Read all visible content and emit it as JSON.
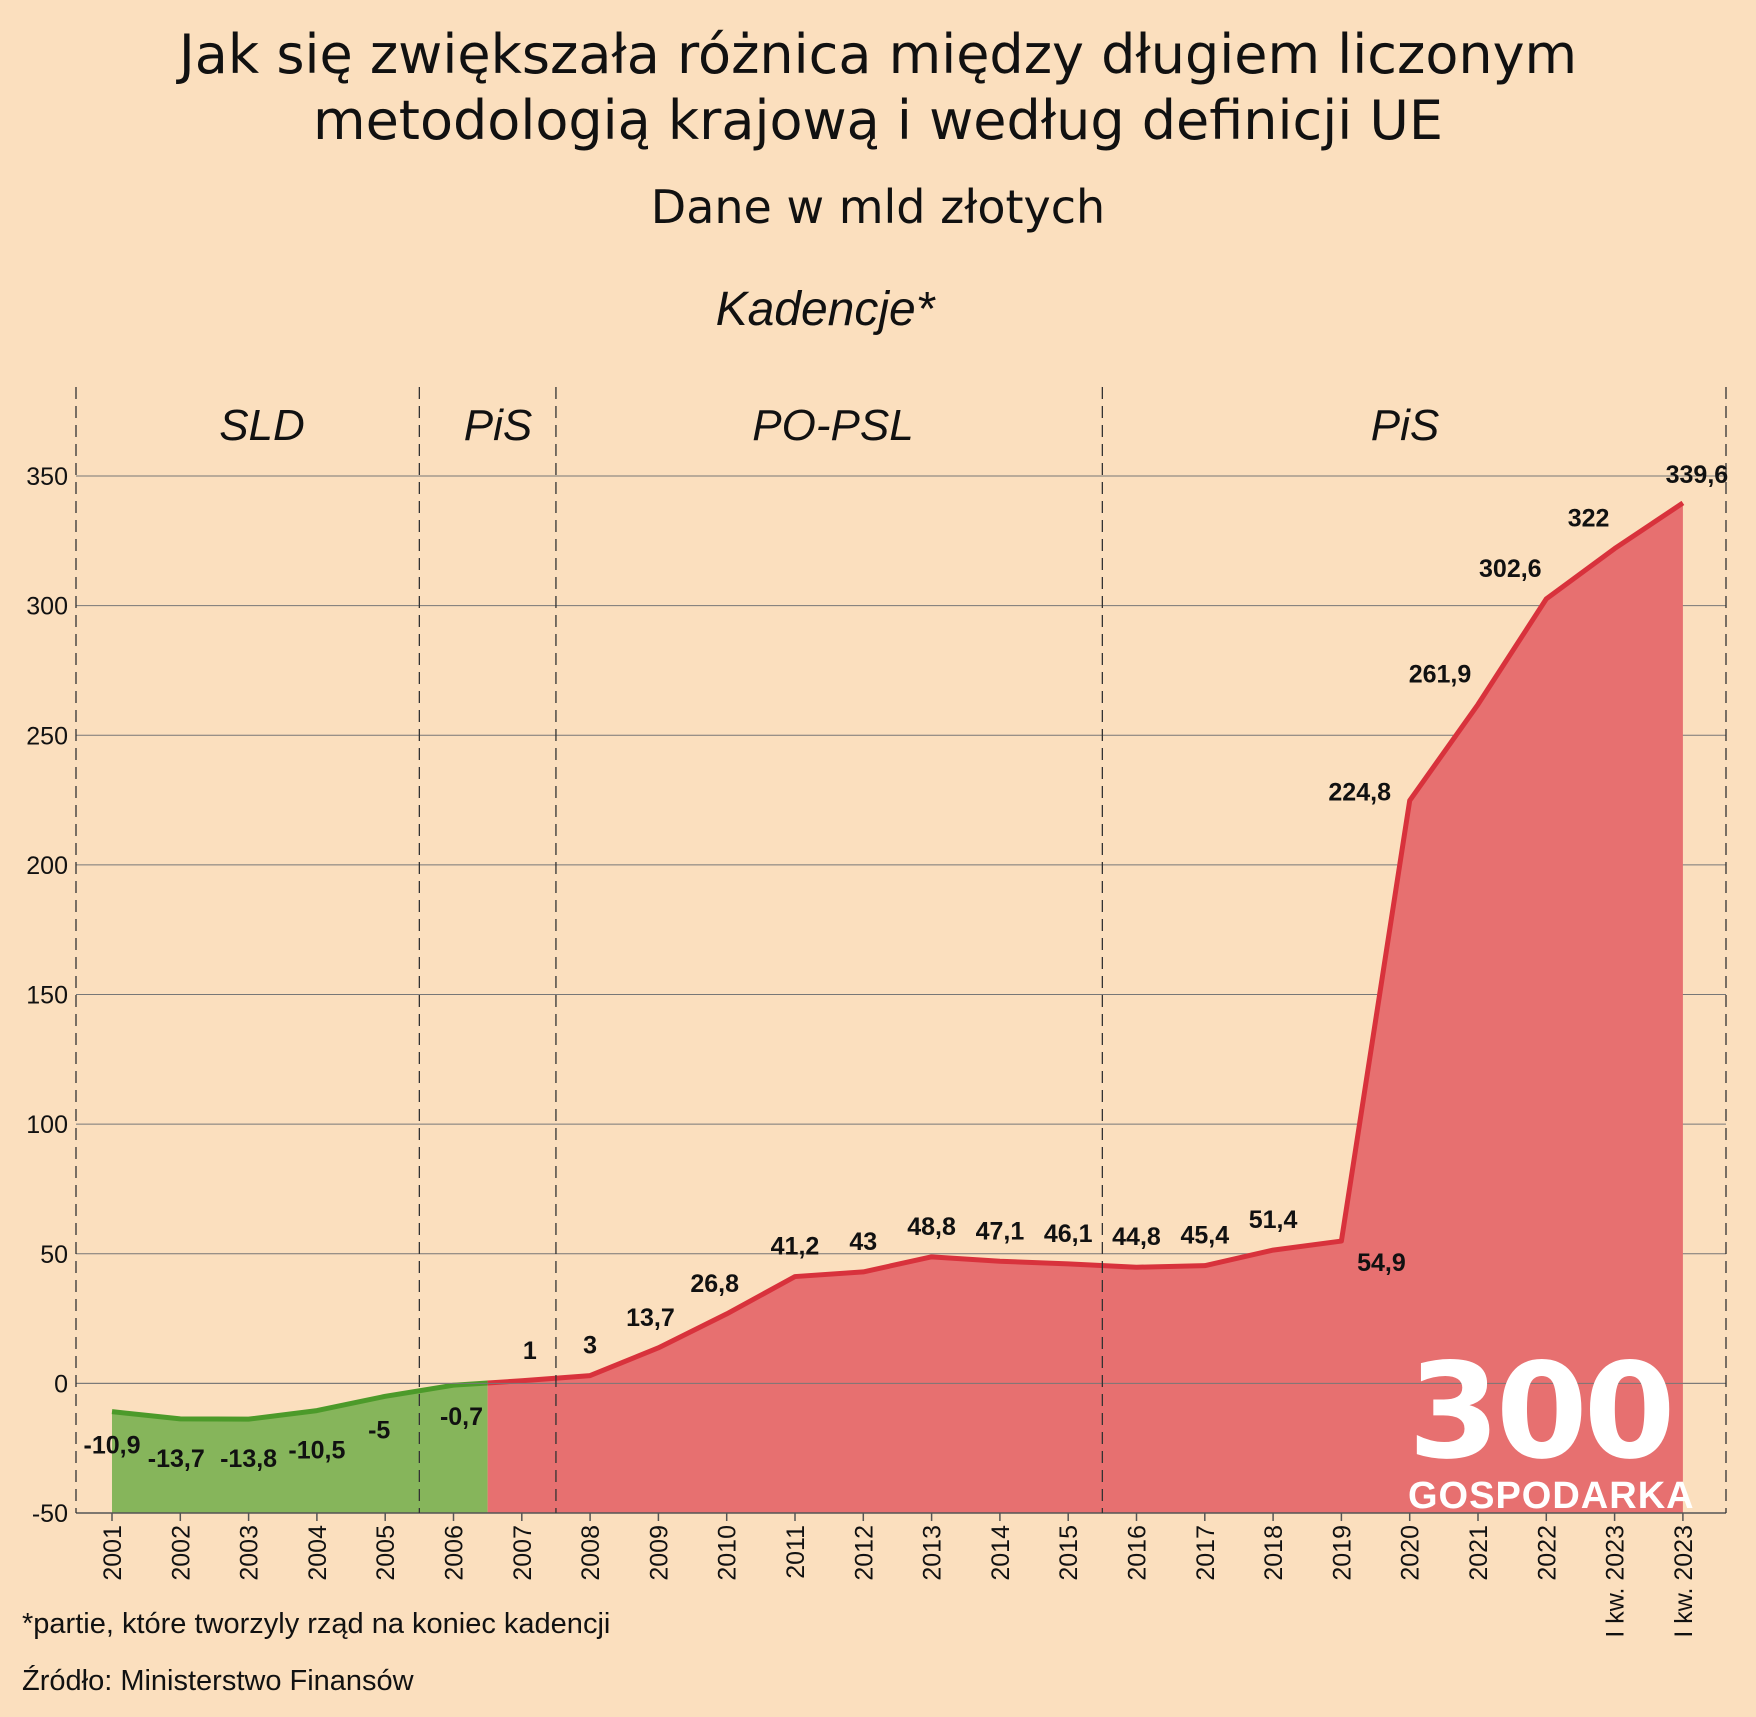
{
  "title_lines": [
    "Jak się zwiększała różnica między długiem liczonym",
    "metodologią krajową i według definicji UE"
  ],
  "subtitle": "Dane w mld złotych",
  "terms_title": "Kadencje*",
  "footnote": "*partie, które tworzyly rząd na koniec kadencji",
  "source": "Źródło: Ministerstwo Finansów",
  "logo": {
    "number": "300",
    "word": "GOSPODARKA"
  },
  "colors": {
    "background": "#fbdfbe",
    "negative_fill": "#86b55b",
    "negative_line": "#4c9a2a",
    "positive_fill": "#e77070",
    "positive_line": "#d8323c",
    "grid": "#777777"
  },
  "chart_data": {
    "type": "area",
    "title": "Jak się zwiększała różnica między długiem liczonym metodologią krajową i według definicji UE",
    "subtitle": "Dane w mld złotych",
    "x": [
      "2001",
      "2002",
      "2003",
      "2004",
      "2005",
      "2006",
      "2007",
      "2008",
      "2009",
      "2010",
      "2011",
      "2012",
      "2013",
      "2014",
      "2015",
      "2016",
      "2017",
      "2018",
      "2019",
      "2020",
      "2021",
      "2022",
      "I kw. 2023",
      "I kw. 2023"
    ],
    "values": [
      -10.9,
      -13.7,
      -13.8,
      -10.5,
      -5,
      -0.7,
      1,
      3,
      13.7,
      26.8,
      41.2,
      43,
      48.8,
      47.1,
      46.1,
      44.8,
      45.4,
      51.4,
      54.9,
      224.8,
      261.9,
      302.6,
      322,
      339.6
    ],
    "value_labels": [
      "-10,9",
      "-13,7",
      "-13,8",
      "-10,5",
      "-5",
      "-0,7",
      "1",
      "3",
      "13,7",
      "26,8",
      "41,2",
      "43",
      "48,8",
      "47,1",
      "46,1",
      "44,8",
      "45,4",
      "51,4",
      "54,9",
      "224,8",
      "261,9",
      "302,6",
      "322",
      "339,6"
    ],
    "ylim": [
      -50,
      350
    ],
    "yticks": [
      -50,
      0,
      50,
      100,
      150,
      200,
      250,
      300,
      350
    ],
    "grid": true,
    "terms": [
      {
        "label": "SLD",
        "from": 2001,
        "to": 2005
      },
      {
        "label": "PiS",
        "from": 2006,
        "to": 2007
      },
      {
        "label": "PO-PSL",
        "from": 2008,
        "to": 2015
      },
      {
        "label": "PiS",
        "from": 2016,
        "to": 2023
      }
    ]
  }
}
